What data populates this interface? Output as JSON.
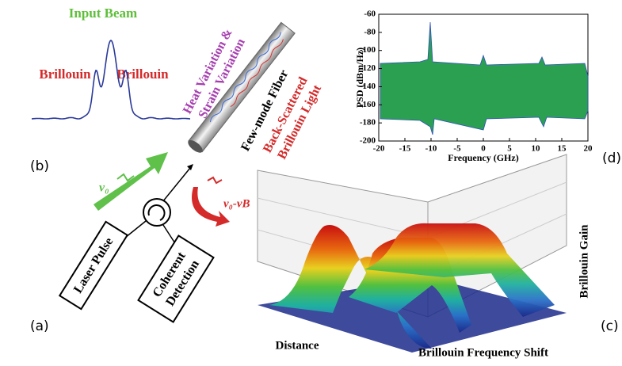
{
  "panel_b": {
    "title": "Input Beam",
    "left_label": "Brillouin",
    "right_label": "Brillouin",
    "tag": "(b)"
  },
  "panel_a": {
    "variation": [
      "Heat Variation &",
      "Strain Variation"
    ],
    "fiber": "Few-mode Fiber",
    "backscatter": [
      "Back-Scattered",
      "Brillouin Light"
    ],
    "pump": "ν₀",
    "stokes": "ν₀-νB",
    "laser": "Laser Pulse",
    "detection": [
      "Coherent",
      "Detection"
    ],
    "tag": "(a)"
  },
  "panel_d": {
    "ylabel": "PSD (dBm/Hz)",
    "xlabel": "Frequency (GHz)",
    "xlim": [
      -20,
      20
    ],
    "ylim": [
      -200,
      -60
    ],
    "xticks": [
      -20,
      -15,
      -10,
      -5,
      0,
      5,
      10,
      15,
      20
    ],
    "yticks": [
      -60,
      -80,
      -100,
      -120,
      -140,
      -160,
      -180,
      -200
    ],
    "tag": "(d)"
  },
  "panel_c": {
    "zlabel": "Brillouin Gain",
    "xlabel": "Distance",
    "ylabel": "Brillouin Frequency Shift",
    "tag": "(c)"
  }
}
